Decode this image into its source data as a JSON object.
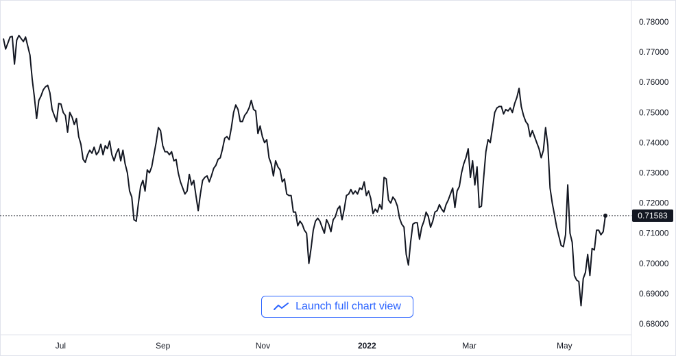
{
  "chart_data": {
    "type": "line",
    "x_tick_labels": [
      "Jul",
      "Sep",
      "Nov",
      "2022",
      "Mar",
      "May"
    ],
    "y_tick_labels": [
      "0.78000",
      "0.77000",
      "0.76000",
      "0.75000",
      "0.74000",
      "0.73000",
      "0.72000",
      "0.71000",
      "0.70000",
      "0.69000",
      "0.68000"
    ],
    "ylim": [
      0.6775,
      0.7835
    ],
    "grid": false,
    "last_price_label": "0.71583",
    "last_value": 0.71583,
    "series": [
      {
        "values": [
          0.7745,
          0.771,
          0.773,
          0.775,
          0.7752,
          0.766,
          0.774,
          0.7755,
          0.7745,
          0.7735,
          0.775,
          0.772,
          0.769,
          0.761,
          0.755,
          0.748,
          0.754,
          0.7555,
          0.7575,
          0.7585,
          0.759,
          0.7565,
          0.751,
          0.749,
          0.747,
          0.753,
          0.7528,
          0.75,
          0.749,
          0.7435,
          0.75,
          0.7485,
          0.746,
          0.748,
          0.742,
          0.7395,
          0.7345,
          0.7335,
          0.736,
          0.7375,
          0.7365,
          0.7385,
          0.736,
          0.737,
          0.7395,
          0.736,
          0.739,
          0.738,
          0.7405,
          0.736,
          0.734,
          0.7365,
          0.738,
          0.734,
          0.7375,
          0.733,
          0.73,
          0.724,
          0.722,
          0.7145,
          0.714,
          0.72,
          0.7255,
          0.7275,
          0.724,
          0.731,
          0.73,
          0.732,
          0.736,
          0.74,
          0.745,
          0.744,
          0.739,
          0.737,
          0.737,
          0.736,
          0.737,
          0.734,
          0.7345,
          0.73,
          0.727,
          0.725,
          0.723,
          0.724,
          0.7295,
          0.726,
          0.7275,
          0.7225,
          0.7175,
          0.723,
          0.7275,
          0.7285,
          0.729,
          0.727,
          0.729,
          0.7315,
          0.7325,
          0.7345,
          0.735,
          0.738,
          0.7415,
          0.742,
          0.741,
          0.745,
          0.75,
          0.7525,
          0.751,
          0.747,
          0.747,
          0.749,
          0.75,
          0.7515,
          0.754,
          0.751,
          0.7505,
          0.743,
          0.7455,
          0.742,
          0.74,
          0.741,
          0.735,
          0.733,
          0.729,
          0.734,
          0.732,
          0.731,
          0.727,
          0.728,
          0.723,
          0.7225,
          0.7225,
          0.717,
          0.717,
          0.7125,
          0.714,
          0.713,
          0.711,
          0.71,
          0.7,
          0.705,
          0.711,
          0.714,
          0.715,
          0.714,
          0.712,
          0.71,
          0.7145,
          0.713,
          0.7105,
          0.7145,
          0.7155,
          0.718,
          0.719,
          0.7145,
          0.718,
          0.7225,
          0.723,
          0.7245,
          0.723,
          0.724,
          0.723,
          0.725,
          0.7245,
          0.727,
          0.7225,
          0.724,
          0.7215,
          0.7165,
          0.718,
          0.717,
          0.7195,
          0.718,
          0.7285,
          0.728,
          0.721,
          0.72,
          0.722,
          0.721,
          0.719,
          0.715,
          0.713,
          0.712,
          0.703,
          0.6995,
          0.707,
          0.713,
          0.7135,
          0.7135,
          0.708,
          0.712,
          0.714,
          0.717,
          0.7155,
          0.712,
          0.714,
          0.717,
          0.7175,
          0.7195,
          0.718,
          0.717,
          0.7195,
          0.721,
          0.723,
          0.725,
          0.7185,
          0.724,
          0.7255,
          0.73,
          0.733,
          0.735,
          0.738,
          0.7285,
          0.734,
          0.726,
          0.732,
          0.7185,
          0.719,
          0.7285,
          0.737,
          0.741,
          0.74,
          0.745,
          0.75,
          0.7515,
          0.752,
          0.752,
          0.7495,
          0.751,
          0.7505,
          0.7515,
          0.75,
          0.753,
          0.755,
          0.758,
          0.752,
          0.749,
          0.747,
          0.746,
          0.742,
          0.744,
          0.742,
          0.74,
          0.738,
          0.735,
          0.7375,
          0.745,
          0.739,
          0.725,
          0.72,
          0.716,
          0.712,
          0.709,
          0.706,
          0.7055,
          0.7095,
          0.726,
          0.71,
          0.707,
          0.696,
          0.6945,
          0.694,
          0.686,
          0.695,
          0.697,
          0.703,
          0.696,
          0.705,
          0.7045,
          0.711,
          0.711,
          0.7095,
          0.7105,
          0.7158
        ]
      }
    ],
    "colors": {
      "line": "#131722",
      "axis_text": "#131722",
      "accent": "#2962ff",
      "border": "#e0e3eb"
    }
  },
  "launch_button": {
    "label": "Launch full chart view",
    "icon": "trend-line-icon"
  }
}
